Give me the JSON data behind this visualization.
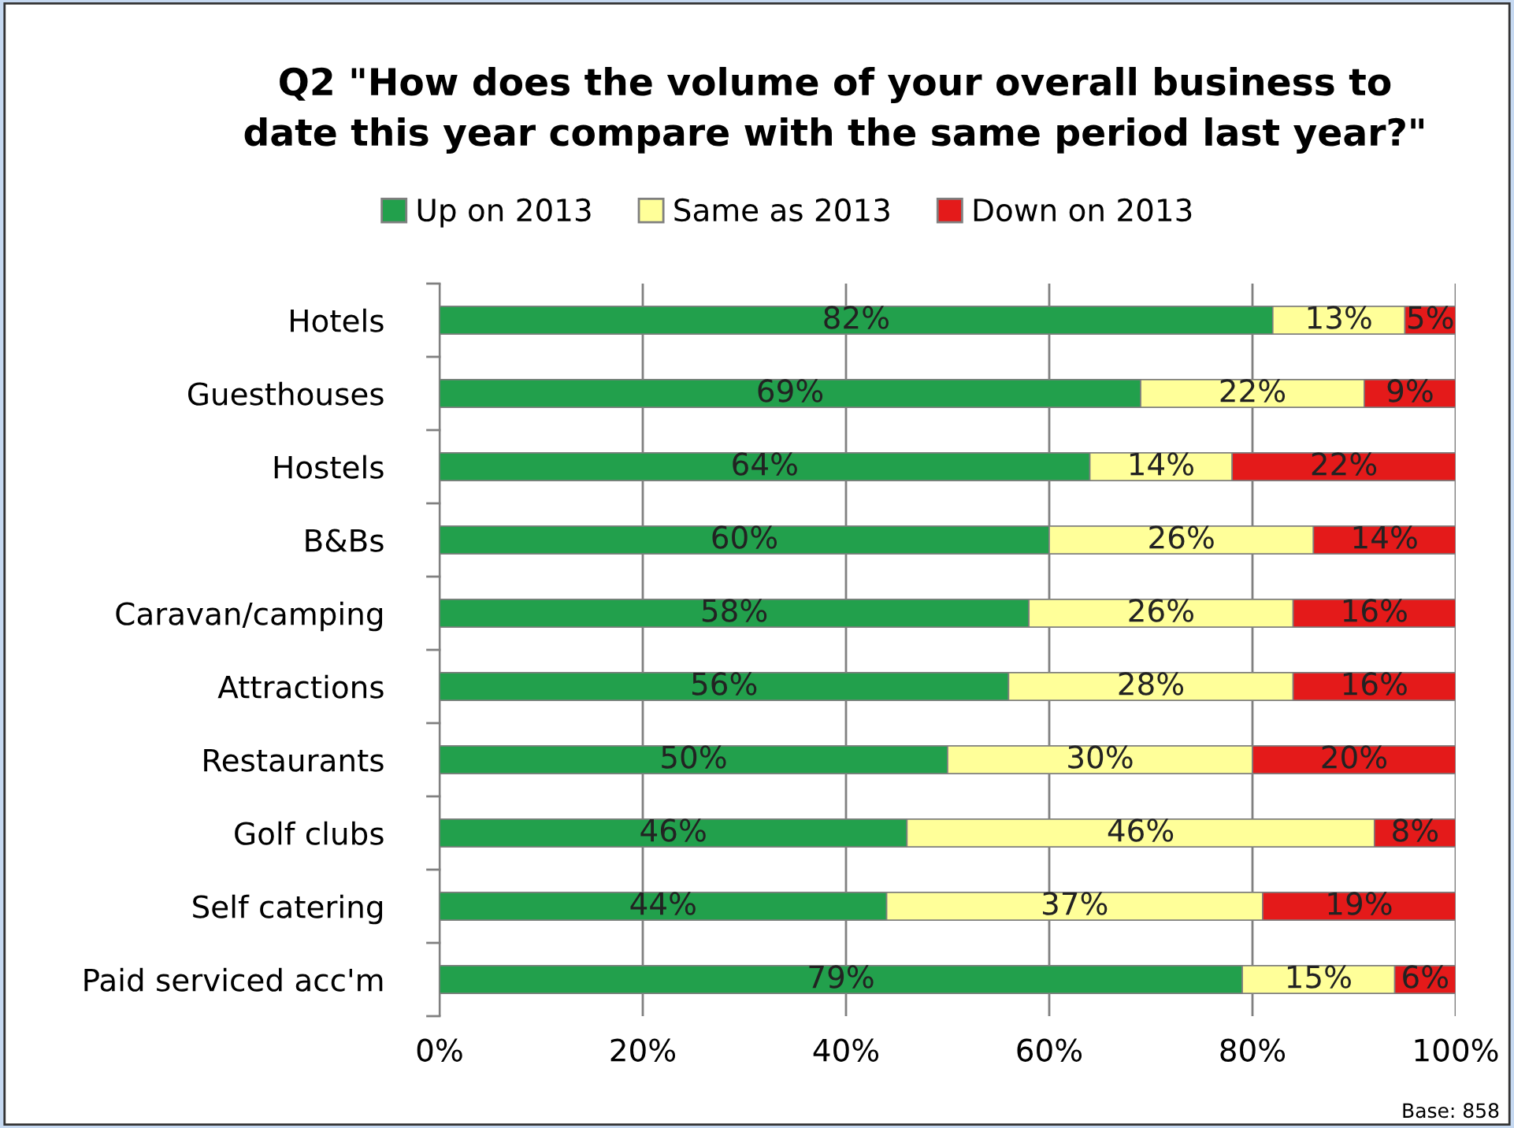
{
  "chart_data": {
    "type": "bar",
    "orientation": "horizontal",
    "stacked": true,
    "title": "Q2 \"How does the volume of your overall business to\ndate this year compare with the same period last year?\"",
    "categories": [
      "Hotels",
      "Guesthouses",
      "Hostels",
      "B&Bs",
      "Caravan/camping",
      "Attractions",
      "Restaurants",
      "Golf clubs",
      "Self catering",
      "Paid serviced acc'm"
    ],
    "series": [
      {
        "name": "Up on 2013",
        "color": "#22a04c",
        "values": [
          82,
          69,
          64,
          60,
          58,
          56,
          50,
          46,
          44,
          79
        ],
        "value_labels": [
          "82%",
          "69%",
          "64%",
          "60%",
          "58%",
          "56%",
          "50%",
          "46%",
          "44%",
          "79%"
        ]
      },
      {
        "name": "Same as 2013",
        "color": "#ffff99",
        "values": [
          13,
          22,
          14,
          26,
          26,
          28,
          30,
          46,
          37,
          15
        ],
        "value_labels": [
          "13%",
          "22%",
          "14%",
          "26%",
          "26%",
          "28%",
          "30%",
          "46%",
          "37%",
          "15%"
        ]
      },
      {
        "name": "Down on 2013",
        "color": "#e41a1a",
        "values": [
          5,
          9,
          22,
          14,
          16,
          16,
          20,
          8,
          19,
          6
        ],
        "value_labels": [
          "5%",
          "9%",
          "22%",
          "14%",
          "16%",
          "16%",
          "20%",
          "8%",
          "19%",
          "6%"
        ]
      }
    ],
    "xlim": [
      0,
      100
    ],
    "xticks": [
      {
        "value": 0,
        "label": "0%"
      },
      {
        "value": 20,
        "label": "20%"
      },
      {
        "value": 40,
        "label": "40%"
      },
      {
        "value": 60,
        "label": "60%"
      },
      {
        "value": 80,
        "label": "80%"
      },
      {
        "value": 100,
        "label": "100%"
      }
    ],
    "grid": "x",
    "legend": "top",
    "annotations": [
      "Base: 858"
    ]
  }
}
